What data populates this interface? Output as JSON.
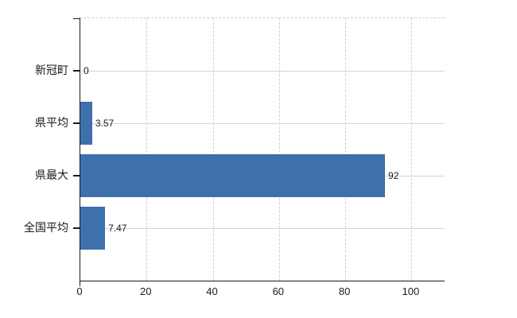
{
  "chart_data": {
    "type": "bar",
    "orientation": "horizontal",
    "categories": [
      "新冠町",
      "県平均",
      "県最大",
      "全国平均"
    ],
    "values": [
      0,
      3.57,
      92,
      7.47
    ],
    "value_labels": [
      "0",
      "3.57",
      "92",
      "7.47"
    ],
    "x_ticks": [
      0,
      20,
      40,
      60,
      80,
      100
    ],
    "x_tick_labels": [
      "0",
      "20",
      "40",
      "60",
      "80",
      "100"
    ],
    "xlim": [
      0,
      110
    ],
    "grid": "vertical-dashed-horizontal-solid",
    "legend_position": "none",
    "colors": {
      "bar": "#3e70ac",
      "grid": "#d4d4d4",
      "grid_dashed": "#d0d0d0",
      "axis": "#1a1a1a",
      "text": "#1a1a1a",
      "background": "#ffffff"
    }
  }
}
